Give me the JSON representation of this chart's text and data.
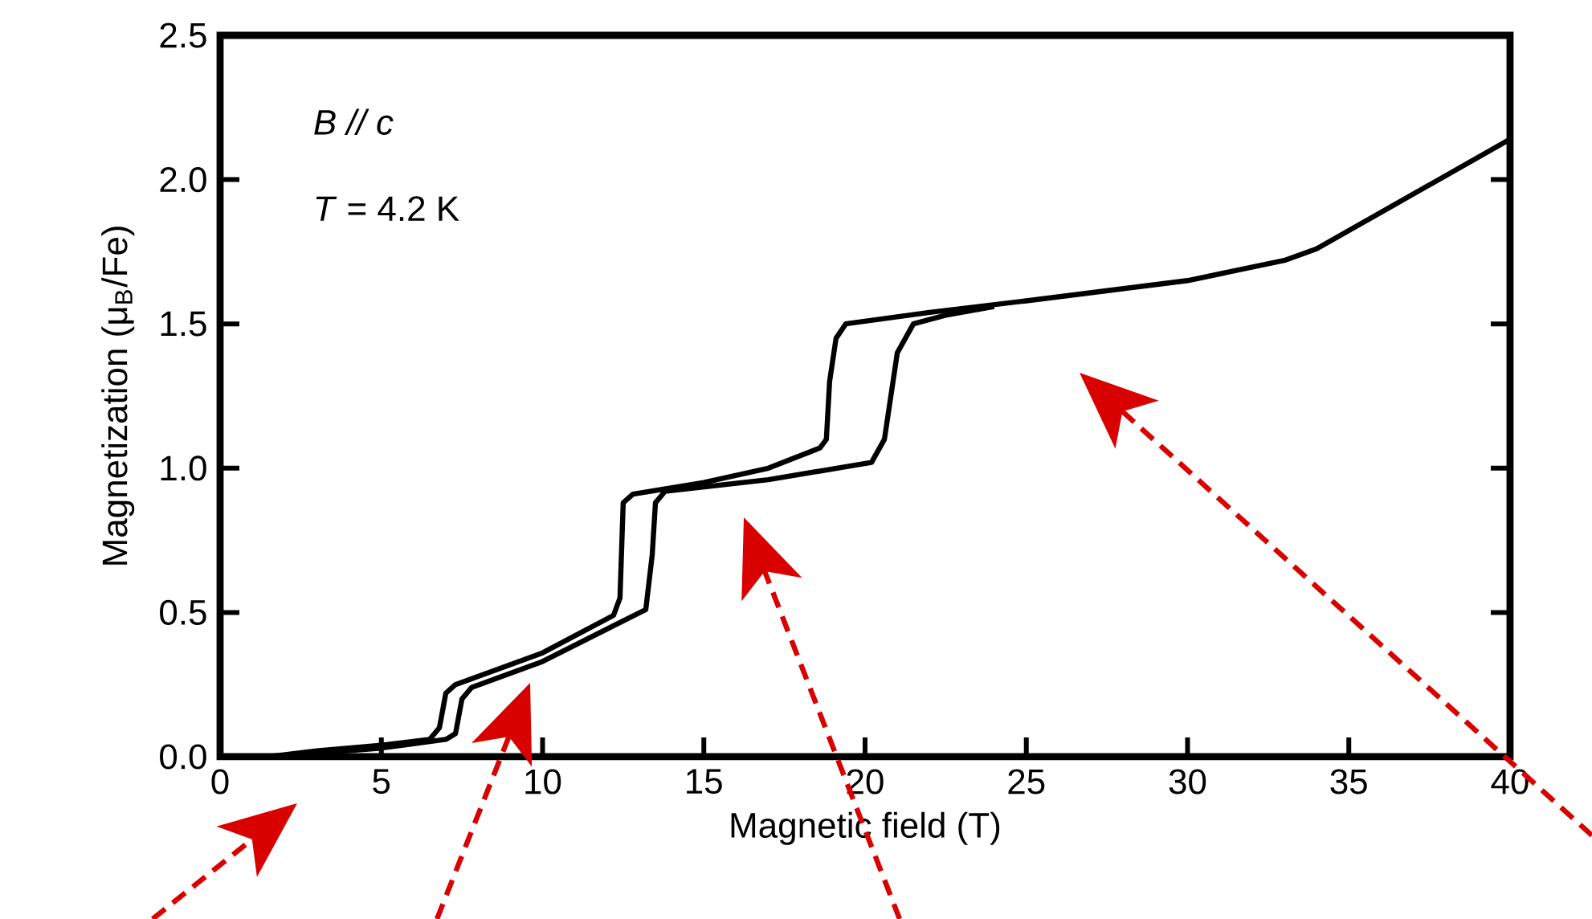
{
  "chart_data": {
    "type": "line",
    "xlabel": "Magnetic field (T)",
    "ylabel": "Magnetization (μ$_{B}$/Fe)",
    "annotations": [
      "*B // c*",
      "*T* = 4.2 K"
    ],
    "xlim": [
      0,
      40
    ],
    "xticks": [
      0,
      5,
      10,
      15,
      20,
      25,
      30,
      35,
      40
    ],
    "ylim": [
      0,
      2.5
    ],
    "yticks": [
      {
        "value": 0,
        "label": "0.0"
      },
      {
        "value": 0.5,
        "label": "0.5"
      },
      {
        "value": 1,
        "label": "1.0"
      },
      {
        "value": 1.5,
        "label": "1.5"
      },
      {
        "value": 2,
        "label": "2.0"
      },
      {
        "value": 2.5,
        "label": "2.5"
      }
    ],
    "line_style": "solid",
    "series": [
      {
        "color": "#000000",
        "x": [
          1.5,
          3,
          5,
          6.5,
          6.8,
          7.0,
          7.3,
          10,
          12.2,
          12.4,
          12.5,
          12.8,
          15,
          17,
          18.6,
          18.8,
          18.9,
          19.1,
          19.4,
          22,
          25,
          30,
          33,
          34,
          37,
          40
        ],
        "values": [
          0.0,
          0.02,
          0.04,
          0.06,
          0.1,
          0.22,
          0.25,
          0.36,
          0.49,
          0.55,
          0.88,
          0.91,
          0.95,
          1.0,
          1.07,
          1.1,
          1.3,
          1.45,
          1.5,
          1.54,
          1.58,
          1.65,
          1.72,
          1.76,
          1.95,
          2.14
        ]
      },
      {
        "color": "#000000",
        "x": [
          1.5,
          5,
          7,
          7.3,
          7.5,
          7.8,
          10,
          13.2,
          13.4,
          13.5,
          13.8,
          17,
          20.2,
          20.6,
          21.0,
          21.5,
          22.5,
          24
        ],
        "values": [
          0.0,
          0.03,
          0.06,
          0.08,
          0.2,
          0.24,
          0.33,
          0.51,
          0.7,
          0.88,
          0.92,
          0.96,
          1.02,
          1.1,
          1.4,
          1.5,
          1.53,
          1.56
        ]
      }
    ]
  }
}
